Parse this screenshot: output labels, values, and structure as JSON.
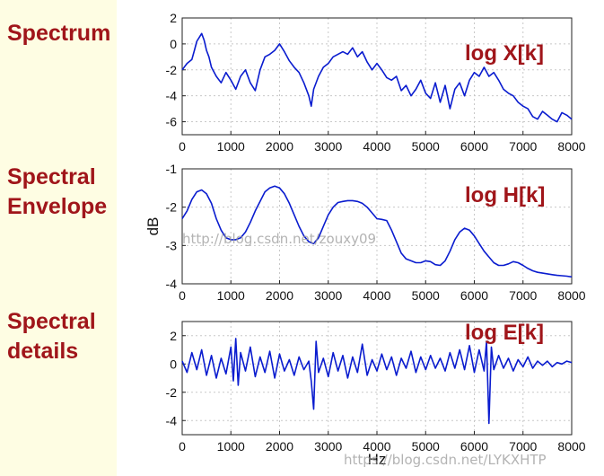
{
  "labels": {
    "spectrum": "Spectrum",
    "envelope_line1": "Spectral",
    "envelope_line2": "Envelope",
    "details_line1": "Spectral",
    "details_line2": "details"
  },
  "watermarks": {
    "middle": "http://blog.csdn.net/zouxy09",
    "bottom": "https://blog.csdn.net/LYKXHTP"
  },
  "colors": {
    "series": "#0a1ccf",
    "label": "#a0151a",
    "grid": "#c8c8c8"
  },
  "chart_data": [
    {
      "type": "line",
      "annotation": "log X[k]",
      "xlabel": "",
      "ylabel": "",
      "xlim": [
        0,
        8000
      ],
      "ylim": [
        -7,
        2
      ],
      "xticks": [
        0,
        1000,
        2000,
        3000,
        4000,
        5000,
        6000,
        7000,
        8000
      ],
      "yticks": [
        2,
        0,
        -2,
        -4,
        -6
      ],
      "grid": true,
      "series": [
        {
          "x": [
            0,
            100,
            200,
            250,
            300,
            350,
            400,
            450,
            500,
            550,
            600,
            700,
            800,
            900,
            1000,
            1100,
            1200,
            1300,
            1400,
            1500,
            1600,
            1700,
            1800,
            1900,
            2000,
            2100,
            2200,
            2300,
            2400,
            2500,
            2600,
            2650,
            2700,
            2800,
            2900,
            3000,
            3100,
            3200,
            3300,
            3400,
            3500,
            3600,
            3700,
            3800,
            3900,
            4000,
            4100,
            4200,
            4300,
            4400,
            4500,
            4600,
            4700,
            4800,
            4900,
            5000,
            5100,
            5200,
            5300,
            5400,
            5500,
            5600,
            5700,
            5800,
            5900,
            6000,
            6100,
            6200,
            6300,
            6400,
            6500,
            6600,
            6700,
            6800,
            6900,
            7000,
            7100,
            7200,
            7300,
            7400,
            7500,
            7600,
            7700,
            7800,
            7900,
            8000
          ],
          "y": [
            -2.0,
            -1.5,
            -1.2,
            -0.5,
            0.2,
            0.5,
            0.8,
            0.3,
            -0.5,
            -1.0,
            -1.8,
            -2.5,
            -3.0,
            -2.2,
            -2.8,
            -3.5,
            -2.5,
            -2.0,
            -3.0,
            -3.6,
            -2.0,
            -1.0,
            -0.8,
            -0.5,
            0.0,
            -0.6,
            -1.3,
            -1.8,
            -2.2,
            -3.0,
            -4.0,
            -4.8,
            -3.5,
            -2.5,
            -1.8,
            -1.5,
            -1.0,
            -0.8,
            -0.6,
            -0.8,
            -0.3,
            -1.0,
            -0.6,
            -1.4,
            -2.0,
            -1.5,
            -2.0,
            -2.6,
            -2.8,
            -2.5,
            -3.6,
            -3.2,
            -4.0,
            -3.5,
            -2.8,
            -3.8,
            -4.2,
            -3.0,
            -4.5,
            -3.2,
            -5.0,
            -3.5,
            -3.0,
            -4.0,
            -2.8,
            -2.2,
            -2.5,
            -1.8,
            -2.5,
            -2.2,
            -2.8,
            -3.5,
            -3.8,
            -4.0,
            -4.5,
            -4.8,
            -5.0,
            -5.6,
            -5.8,
            -5.2,
            -5.5,
            -5.8,
            -6.0,
            -5.3,
            -5.5,
            -5.8
          ]
        }
      ]
    },
    {
      "type": "line",
      "annotation": "log H[k]",
      "xlabel": "",
      "ylabel": "dB",
      "xlim": [
        0,
        8000
      ],
      "ylim": [
        -4,
        -1
      ],
      "xticks": [
        0,
        1000,
        2000,
        3000,
        4000,
        5000,
        6000,
        7000,
        8000
      ],
      "yticks": [
        -1,
        -2,
        -3,
        -4
      ],
      "grid": true,
      "series": [
        {
          "x": [
            0,
            100,
            200,
            300,
            400,
            500,
            600,
            700,
            800,
            900,
            1000,
            1100,
            1200,
            1300,
            1400,
            1500,
            1600,
            1700,
            1800,
            1900,
            2000,
            2100,
            2200,
            2300,
            2400,
            2500,
            2600,
            2700,
            2800,
            2900,
            3000,
            3100,
            3200,
            3300,
            3400,
            3500,
            3600,
            3700,
            3800,
            3900,
            4000,
            4100,
            4200,
            4300,
            4400,
            4500,
            4600,
            4700,
            4800,
            4900,
            5000,
            5100,
            5200,
            5300,
            5400,
            5500,
            5600,
            5700,
            5800,
            5900,
            6000,
            6100,
            6200,
            6300,
            6400,
            6500,
            6600,
            6700,
            6800,
            6900,
            7000,
            7100,
            7200,
            7300,
            7400,
            7500,
            7600,
            7700,
            7800,
            7900,
            8000
          ],
          "y": [
            -2.3,
            -2.1,
            -1.8,
            -1.6,
            -1.55,
            -1.65,
            -1.9,
            -2.3,
            -2.6,
            -2.8,
            -2.85,
            -2.85,
            -2.8,
            -2.65,
            -2.4,
            -2.1,
            -1.85,
            -1.6,
            -1.5,
            -1.45,
            -1.5,
            -1.65,
            -1.9,
            -2.2,
            -2.5,
            -2.75,
            -2.9,
            -2.95,
            -2.8,
            -2.5,
            -2.2,
            -2.0,
            -1.88,
            -1.85,
            -1.83,
            -1.83,
            -1.85,
            -1.9,
            -2.0,
            -2.15,
            -2.3,
            -2.32,
            -2.35,
            -2.6,
            -2.9,
            -3.2,
            -3.35,
            -3.4,
            -3.45,
            -3.45,
            -3.4,
            -3.42,
            -3.5,
            -3.52,
            -3.4,
            -3.15,
            -2.85,
            -2.65,
            -2.55,
            -2.6,
            -2.75,
            -2.95,
            -3.15,
            -3.3,
            -3.45,
            -3.52,
            -3.52,
            -3.48,
            -3.42,
            -3.45,
            -3.52,
            -3.6,
            -3.66,
            -3.7,
            -3.72,
            -3.74,
            -3.76,
            -3.78,
            -3.79,
            -3.8,
            -3.82
          ]
        }
      ]
    },
    {
      "type": "line",
      "annotation": "log E[k]",
      "xlabel": "Hz",
      "ylabel": "",
      "xlim": [
        0,
        8000
      ],
      "ylim": [
        -5,
        3
      ],
      "xticks": [
        0,
        1000,
        2000,
        3000,
        4000,
        5000,
        6000,
        7000,
        8000
      ],
      "yticks": [
        2,
        0,
        -2,
        -4
      ],
      "grid": true,
      "series": [
        {
          "x": [
            0,
            100,
            200,
            300,
            400,
            500,
            600,
            700,
            800,
            900,
            1000,
            1050,
            1100,
            1150,
            1200,
            1300,
            1400,
            1500,
            1600,
            1700,
            1800,
            1900,
            2000,
            2100,
            2200,
            2300,
            2400,
            2500,
            2600,
            2650,
            2700,
            2750,
            2800,
            2900,
            3000,
            3100,
            3200,
            3300,
            3400,
            3500,
            3600,
            3700,
            3800,
            3900,
            4000,
            4100,
            4200,
            4300,
            4400,
            4500,
            4600,
            4700,
            4800,
            4900,
            5000,
            5100,
            5200,
            5300,
            5400,
            5500,
            5600,
            5700,
            5800,
            5900,
            6000,
            6100,
            6200,
            6250,
            6300,
            6350,
            6400,
            6500,
            6600,
            6700,
            6800,
            6900,
            7000,
            7100,
            7200,
            7300,
            7400,
            7500,
            7600,
            7700,
            7800,
            7900,
            8000
          ],
          "y": [
            0.2,
            -0.6,
            0.8,
            -0.4,
            1.0,
            -0.8,
            0.6,
            -1.0,
            0.4,
            -0.7,
            1.2,
            -1.2,
            1.8,
            -1.5,
            0.8,
            -0.5,
            1.2,
            -0.9,
            0.5,
            -0.6,
            0.9,
            -1.0,
            0.7,
            -0.5,
            0.3,
            -0.8,
            0.5,
            -0.4,
            0.2,
            -1.2,
            -3.2,
            1.6,
            -0.6,
            0.4,
            -0.9,
            0.8,
            -0.5,
            0.6,
            -1.0,
            0.5,
            -0.6,
            1.4,
            -0.8,
            0.3,
            -0.5,
            0.7,
            -0.4,
            0.5,
            -0.8,
            0.4,
            -0.3,
            0.9,
            -0.6,
            0.5,
            -0.4,
            0.6,
            -0.3,
            0.4,
            -0.5,
            0.8,
            -0.3,
            1.0,
            -0.4,
            1.3,
            -0.6,
            1.0,
            -0.5,
            1.6,
            -4.2,
            1.2,
            -0.4,
            0.6,
            -0.3,
            0.4,
            -0.5,
            0.3,
            -0.2,
            0.5,
            -0.3,
            0.2,
            -0.1,
            0.2,
            -0.2,
            0.1,
            0.0,
            0.2,
            0.1
          ]
        }
      ]
    }
  ]
}
